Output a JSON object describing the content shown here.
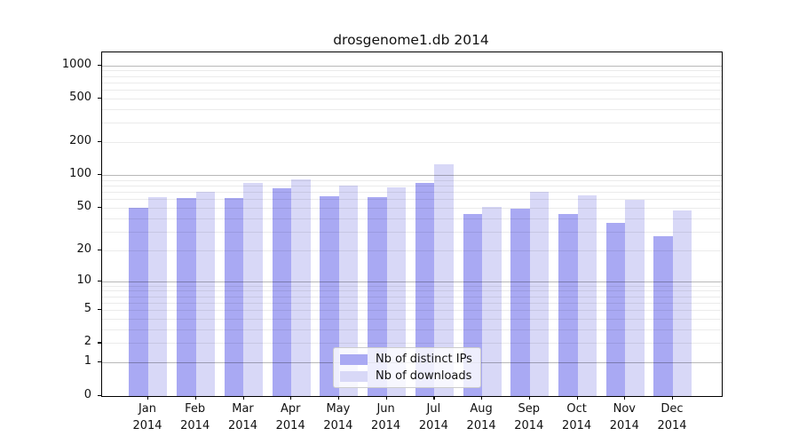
{
  "title": "drosgenome1.db 2014",
  "chart_data": {
    "type": "bar",
    "title": "drosgenome1.db 2014",
    "categories": [
      "Jan 2014",
      "Feb 2014",
      "Mar 2014",
      "Apr 2014",
      "May 2014",
      "Jun 2014",
      "Jul 2014",
      "Aug 2014",
      "Sep 2014",
      "Oct 2014",
      "Nov 2014",
      "Dec 2014"
    ],
    "month_labels": [
      "Jan",
      "Feb",
      "Mar",
      "Apr",
      "May",
      "Jun",
      "Jul",
      "Aug",
      "Sep",
      "Oct",
      "Nov",
      "Dec"
    ],
    "year_label": "2014",
    "series": [
      {
        "name": "Nb of distinct IPs",
        "color": "#a9a9f3",
        "values": [
          50,
          61,
          62,
          76,
          64,
          63,
          84,
          44,
          49,
          44,
          36,
          27
        ]
      },
      {
        "name": "Nb of downloads",
        "color": "#d8d8f7",
        "values": [
          63,
          70,
          84,
          92,
          80,
          77,
          125,
          51,
          70,
          65,
          59,
          47
        ]
      }
    ],
    "xlabel": "",
    "ylabel": "",
    "y_scale": "log(value+1)",
    "y_ticks": [
      0,
      1,
      2,
      5,
      10,
      20,
      50,
      100,
      200,
      500,
      1000
    ],
    "ylim": [
      0,
      1330
    ],
    "grid": "on",
    "grid_minor": "on",
    "legend_position": "lower center inside plot"
  }
}
